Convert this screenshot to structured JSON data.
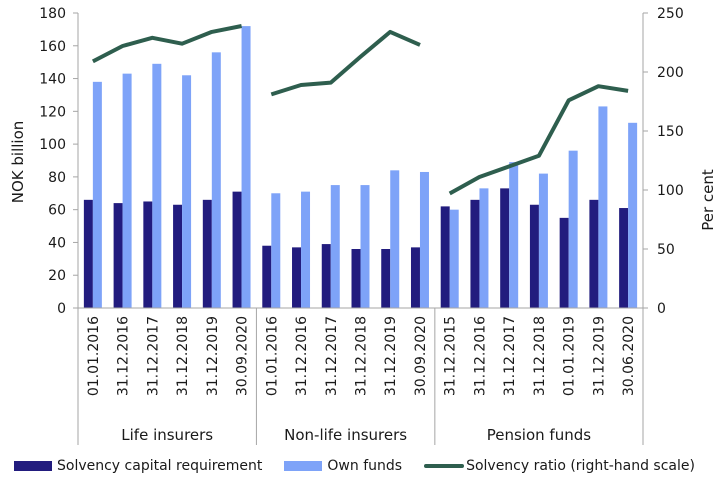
{
  "chart_data": {
    "type": "bar",
    "title": "",
    "ylabel": "NOK billion",
    "y2label": "Per cent",
    "ylim": [
      0,
      180
    ],
    "y2lim": [
      0,
      250
    ],
    "yticks": [
      0,
      20,
      40,
      60,
      80,
      100,
      120,
      140,
      160,
      180
    ],
    "y2ticks": [
      0,
      50,
      100,
      150,
      200,
      250
    ],
    "grid": false,
    "legend_position": "bottom",
    "groups": [
      {
        "name": "Life insurers",
        "categories": [
          "01.01.2016",
          "31.12.2016",
          "31.12.2017",
          "31.12.2018",
          "31.12.2019",
          "30.09.2020"
        ]
      },
      {
        "name": "Non-life insurers",
        "categories": [
          "01.01.2016",
          "31.12.2016",
          "31.12.2017",
          "31.12.2018",
          "31.12.2019",
          "30.09.2020"
        ]
      },
      {
        "name": "Pension funds",
        "categories": [
          "31.12.2015",
          "31.12.2016",
          "31.12.2017",
          "31.12.2018",
          "01.01.2019",
          "31.12.2019",
          "30.06.2020"
        ]
      }
    ],
    "categories": [
      "01.01.2016",
      "31.12.2016",
      "31.12.2017",
      "31.12.2018",
      "31.12.2019",
      "30.09.2020",
      "01.01.2016",
      "31.12.2016",
      "31.12.2017",
      "31.12.2018",
      "31.12.2019",
      "30.09.2020",
      "31.12.2015",
      "31.12.2016",
      "31.12.2017",
      "31.12.2018",
      "01.01.2019",
      "31.12.2019",
      "30.06.2020"
    ],
    "series": [
      {
        "name": "Solvency capital requirement",
        "type": "bar",
        "axis": "left",
        "color": "#221c7e",
        "values": [
          66,
          64,
          65,
          63,
          66,
          71,
          38,
          37,
          39,
          36,
          36,
          37,
          62,
          66,
          73,
          63,
          55,
          66,
          61
        ]
      },
      {
        "name": "Own funds",
        "type": "bar",
        "axis": "left",
        "color": "#7ea3f8",
        "values": [
          138,
          143,
          149,
          142,
          156,
          172,
          70,
          71,
          75,
          75,
          84,
          83,
          60,
          73,
          89,
          82,
          96,
          123,
          113
        ]
      },
      {
        "name": "Solvency ratio (right-hand scale)",
        "type": "line",
        "axis": "right",
        "color": "#2e5e4e",
        "segments": [
          [
            209,
            222,
            229,
            224,
            234,
            239
          ],
          [
            181,
            189,
            191,
            213,
            234,
            223
          ],
          [
            97,
            111,
            120,
            129,
            176,
            188,
            184
          ]
        ]
      }
    ]
  },
  "axes": {
    "left_title": "NOK billion",
    "right_title": "Per cent"
  },
  "legend": {
    "items": [
      {
        "label": "Solvency capital requirement",
        "color": "#221c7e",
        "kind": "bar"
      },
      {
        "label": "Own funds",
        "color": "#7ea3f8",
        "kind": "bar"
      },
      {
        "label": "Solvency ratio (right-hand scale)",
        "color": "#2e5e4e",
        "kind": "line"
      }
    ]
  }
}
